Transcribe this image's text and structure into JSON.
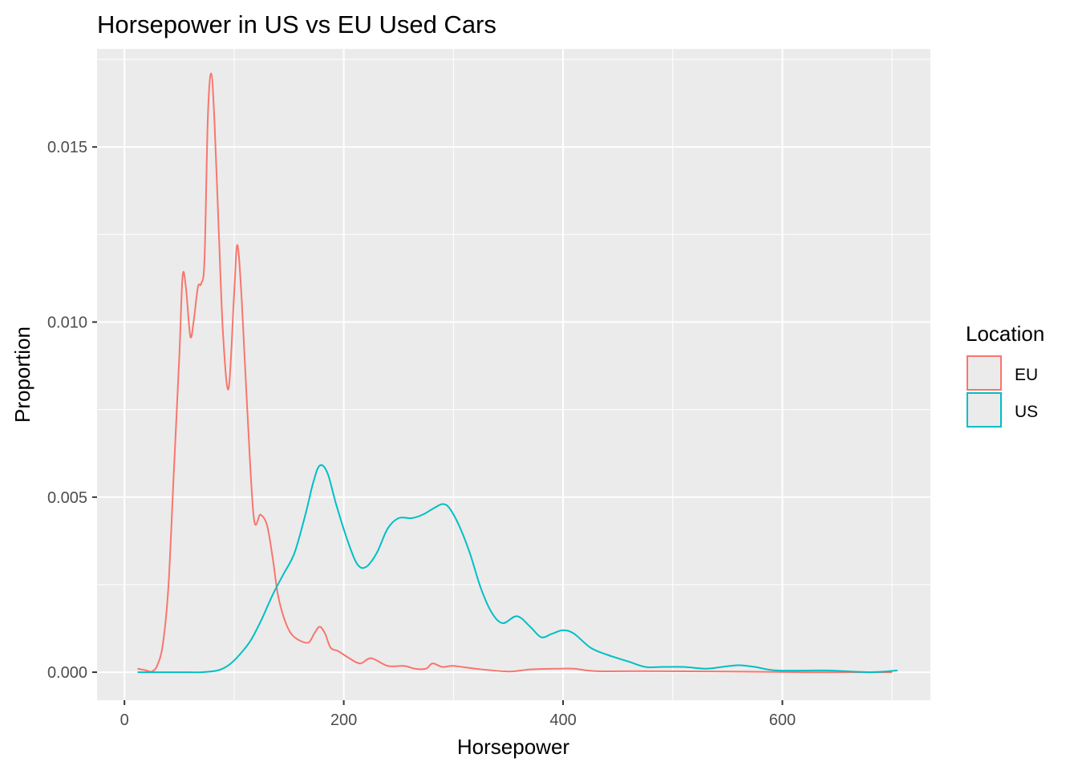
{
  "chart_data": {
    "type": "line",
    "title": "Horsepower in US vs EU Used Cars",
    "xlabel": "Horsepower",
    "ylabel": "Proportion",
    "xlim": [
      -25,
      735
    ],
    "ylim": [
      -0.0008,
      0.0178
    ],
    "x_ticks": [
      0,
      200,
      400,
      600
    ],
    "x_tick_labels": [
      "0",
      "200",
      "400",
      "600"
    ],
    "y_ticks": [
      0.0,
      0.005,
      0.01,
      0.015
    ],
    "y_tick_labels": [
      "0.000",
      "0.005",
      "0.010",
      "0.015"
    ],
    "grid": true,
    "legend": {
      "title": "Location",
      "position": "right",
      "entries": [
        "EU",
        "US"
      ]
    },
    "series": [
      {
        "name": "EU",
        "color": "#F8766D",
        "points": [
          [
            12,
            0.0001
          ],
          [
            20,
            5e-05
          ],
          [
            25,
            2e-05
          ],
          [
            30,
            0.0002
          ],
          [
            35,
            0.0008
          ],
          [
            40,
            0.0024
          ],
          [
            45,
            0.0057
          ],
          [
            50,
            0.009
          ],
          [
            53,
            0.0113
          ],
          [
            56,
            0.011
          ],
          [
            60,
            0.0096
          ],
          [
            63,
            0.01
          ],
          [
            67,
            0.011
          ],
          [
            70,
            0.0111
          ],
          [
            73,
            0.0118
          ],
          [
            76,
            0.0158
          ],
          [
            79,
            0.0171
          ],
          [
            82,
            0.0158
          ],
          [
            86,
            0.0126
          ],
          [
            90,
            0.0096
          ],
          [
            95,
            0.0081
          ],
          [
            100,
            0.0108
          ],
          [
            103,
            0.0122
          ],
          [
            107,
            0.0106
          ],
          [
            112,
            0.0075
          ],
          [
            118,
            0.0044
          ],
          [
            124,
            0.0045
          ],
          [
            130,
            0.0042
          ],
          [
            135,
            0.0033
          ],
          [
            140,
            0.0022
          ],
          [
            146,
            0.0015
          ],
          [
            152,
            0.0011
          ],
          [
            160,
            0.0009
          ],
          [
            168,
            0.00085
          ],
          [
            173,
            0.0011
          ],
          [
            178,
            0.0013
          ],
          [
            183,
            0.0011
          ],
          [
            188,
            0.0007
          ],
          [
            195,
            0.0006
          ],
          [
            205,
            0.0004
          ],
          [
            215,
            0.00025
          ],
          [
            225,
            0.0004
          ],
          [
            240,
            0.00018
          ],
          [
            255,
            0.00018
          ],
          [
            265,
            0.0001
          ],
          [
            275,
            0.0001
          ],
          [
            281,
            0.00025
          ],
          [
            290,
            0.00015
          ],
          [
            300,
            0.00018
          ],
          [
            320,
            0.0001
          ],
          [
            350,
            2e-05
          ],
          [
            370,
            8e-05
          ],
          [
            395,
            0.0001
          ],
          [
            410,
            0.0001
          ],
          [
            430,
            3e-05
          ],
          [
            470,
            3e-05
          ],
          [
            550,
            2e-05
          ],
          [
            620,
            0.0
          ],
          [
            700,
            0.0
          ]
        ]
      },
      {
        "name": "US",
        "color": "#00BFC4",
        "points": [
          [
            12,
            0.0
          ],
          [
            50,
            0.0
          ],
          [
            70,
            0.0
          ],
          [
            85,
            5e-05
          ],
          [
            95,
            0.0002
          ],
          [
            105,
            0.0005
          ],
          [
            115,
            0.0009
          ],
          [
            125,
            0.0015
          ],
          [
            135,
            0.0022
          ],
          [
            145,
            0.0028
          ],
          [
            155,
            0.0034
          ],
          [
            165,
            0.0045
          ],
          [
            172,
            0.0054
          ],
          [
            178,
            0.0059
          ],
          [
            185,
            0.0057
          ],
          [
            193,
            0.0048
          ],
          [
            203,
            0.0038
          ],
          [
            212,
            0.0031
          ],
          [
            220,
            0.003
          ],
          [
            230,
            0.0034
          ],
          [
            240,
            0.0041
          ],
          [
            250,
            0.0044
          ],
          [
            262,
            0.0044
          ],
          [
            272,
            0.0045
          ],
          [
            283,
            0.0047
          ],
          [
            290,
            0.0048
          ],
          [
            296,
            0.0047
          ],
          [
            305,
            0.0042
          ],
          [
            315,
            0.0034
          ],
          [
            325,
            0.0024
          ],
          [
            335,
            0.0017
          ],
          [
            345,
            0.0014
          ],
          [
            358,
            0.0016
          ],
          [
            370,
            0.0013
          ],
          [
            380,
            0.001
          ],
          [
            390,
            0.0011
          ],
          [
            400,
            0.0012
          ],
          [
            410,
            0.0011
          ],
          [
            425,
            0.0007
          ],
          [
            440,
            0.0005
          ],
          [
            460,
            0.0003
          ],
          [
            475,
            0.00015
          ],
          [
            490,
            0.00015
          ],
          [
            510,
            0.00015
          ],
          [
            530,
            0.0001
          ],
          [
            545,
            0.00015
          ],
          [
            560,
            0.0002
          ],
          [
            575,
            0.00015
          ],
          [
            595,
            5e-05
          ],
          [
            640,
            5e-05
          ],
          [
            680,
            0.0
          ],
          [
            705,
            5e-05
          ]
        ]
      }
    ]
  }
}
